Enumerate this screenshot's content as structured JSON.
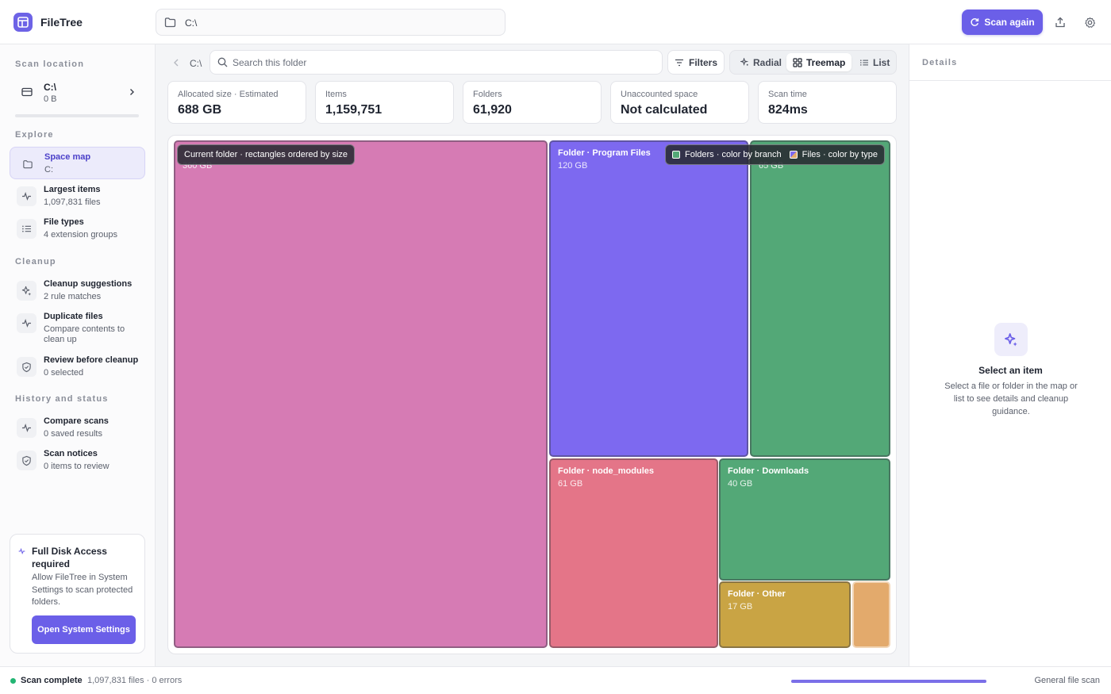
{
  "app": {
    "title": "FileTree"
  },
  "header": {
    "path": "C:\\",
    "scan_label": "Scan again"
  },
  "sidebar": {
    "scan_location_label": "Scan location",
    "location": {
      "name": "C:\\",
      "size": "0 B"
    },
    "explore_label": "Explore",
    "explore": [
      {
        "title": "Space map",
        "sub": "C:",
        "icon": "folder-icon"
      },
      {
        "title": "Largest items",
        "sub": "1,097,831 files",
        "icon": "pulse-icon"
      },
      {
        "title": "File types",
        "sub": "4 extension groups",
        "icon": "list-icon"
      }
    ],
    "cleanup_label": "Cleanup",
    "cleanup": [
      {
        "title": "Cleanup suggestions",
        "sub": "2 rule matches",
        "icon": "sparkle-icon"
      },
      {
        "title": "Duplicate files",
        "sub": "Compare contents to clean up",
        "icon": "pulse-icon"
      },
      {
        "title": "Review before cleanup",
        "sub": "0 selected",
        "icon": "shield-icon"
      }
    ],
    "history_label": "History and status",
    "history": [
      {
        "title": "Compare scans",
        "sub": "0 saved results",
        "icon": "pulse-icon"
      },
      {
        "title": "Scan notices",
        "sub": "0 items to review",
        "icon": "shield-icon"
      }
    ],
    "access_card": {
      "title": "Full Disk Access required",
      "body": "Allow FileTree in System Settings to scan protected folders.",
      "button": "Open System Settings"
    }
  },
  "toolbar": {
    "crumb": "C:\\",
    "search_placeholder": "Search this folder",
    "filters_label": "Filters",
    "views": [
      "Radial",
      "Treemap",
      "List"
    ],
    "active_view": "Treemap"
  },
  "stats": [
    {
      "label": "Allocated size · Estimated",
      "value": "688 GB"
    },
    {
      "label": "Items",
      "value": "1,159,751"
    },
    {
      "label": "Folders",
      "value": "61,920"
    },
    {
      "label": "Unaccounted space",
      "value": "Not calculated"
    },
    {
      "label": "Scan time",
      "value": "824ms"
    }
  ],
  "treemap": {
    "hint": "Current folder · rectangles ordered by size",
    "legend": {
      "folders": "Folders · color by branch",
      "files": "Files · color by type"
    },
    "tiles": [
      {
        "name": "",
        "size": "360 GB",
        "color": "#d67bb4"
      },
      {
        "name": "Folder · Program Files",
        "size": "120 GB",
        "color": "#7d69f0"
      },
      {
        "name": "",
        "size": "65 GB",
        "color": "#53a877"
      },
      {
        "name": "Folder · node_modules",
        "size": "61 GB",
        "color": "#e47588"
      },
      {
        "name": "Folder · Downloads",
        "size": "40 GB",
        "color": "#53a877"
      },
      {
        "name": "Folder · Other",
        "size": "17 GB",
        "color": "#c9a444"
      },
      {
        "name": "",
        "size": "",
        "color": "#e3aa6c"
      }
    ]
  },
  "details": {
    "header": "Details",
    "empty_title": "Select an item",
    "empty_body": "Select a file or folder in the map or list to see details and cleanup guidance."
  },
  "status": {
    "state": "Scan complete",
    "detail": "1,097,831 files · 0 errors",
    "progress": 1.0,
    "mode": "General file scan"
  },
  "colors": {
    "accent": "#6b5fe8",
    "success": "#22b573"
  }
}
